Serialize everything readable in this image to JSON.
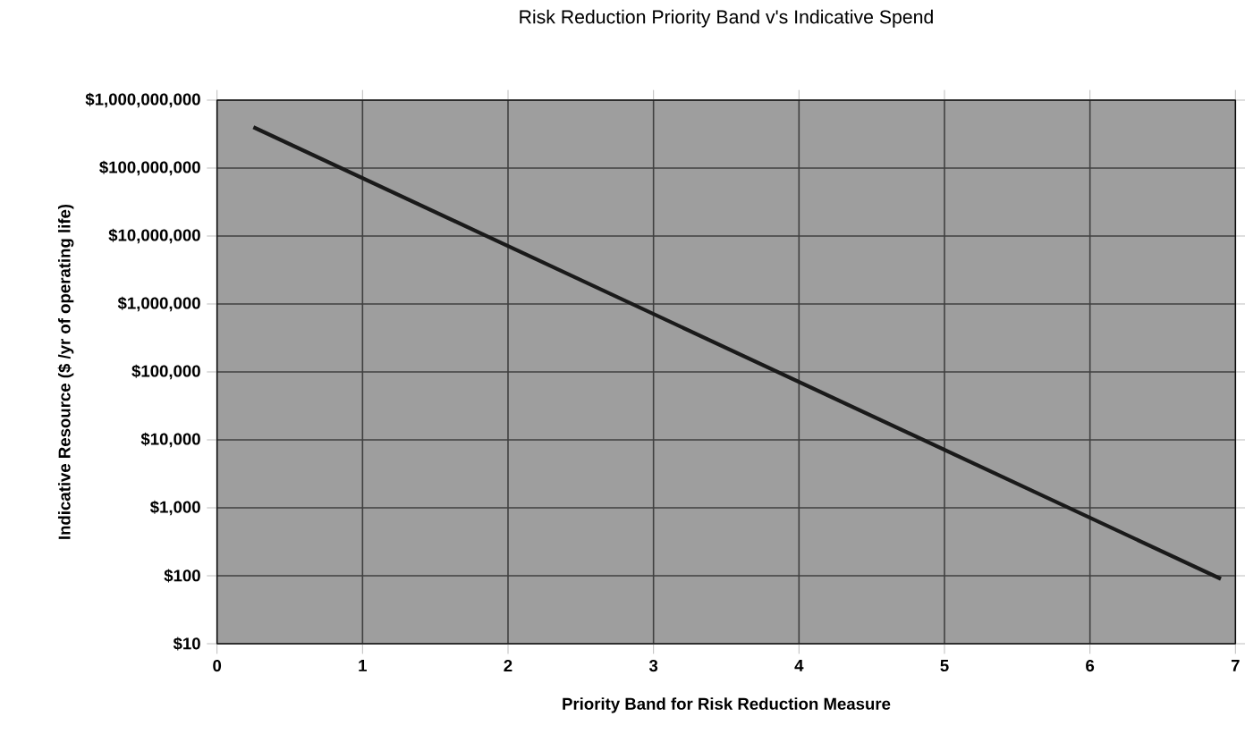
{
  "chart_data": {
    "type": "line",
    "title": "Risk Reduction Priority Band v's Indicative Spend",
    "xlabel": "Priority Band for Risk Reduction Measure",
    "ylabel": "Indicative Resource ($ /yr of operating life)",
    "x": [
      0.25,
      6.9
    ],
    "series": [
      {
        "color": "#1a1a1a",
        "values": [
          400000000,
          90
        ]
      }
    ],
    "log": "y",
    "grid": true,
    "marker": "none",
    "line_style": "solid",
    "xlim": [
      0,
      7
    ],
    "xticks": [
      0,
      1,
      2,
      3,
      4,
      5,
      6,
      7
    ],
    "ylim": [
      10,
      1000000000
    ],
    "yticks": [
      {
        "value": 10,
        "label": "$10"
      },
      {
        "value": 100,
        "label": "$100"
      },
      {
        "value": 1000,
        "label": "$1,000"
      },
      {
        "value": 10000,
        "label": "$10,000"
      },
      {
        "value": 100000,
        "label": "$100,000"
      },
      {
        "value": 1000000,
        "label": "$1,000,000"
      },
      {
        "value": 10000000,
        "label": "$10,000,000"
      },
      {
        "value": 100000000,
        "label": "$100,000,000"
      },
      {
        "value": 1000000000,
        "label": "$1,000,000,000"
      }
    ]
  }
}
